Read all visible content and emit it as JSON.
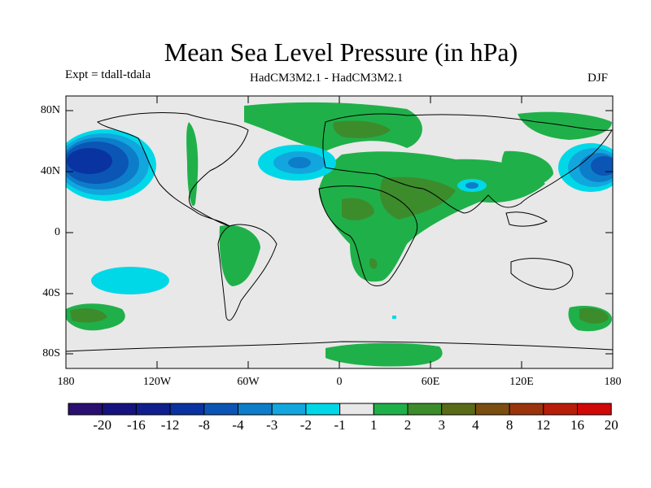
{
  "title": "Mean Sea Level Pressure (in hPa)",
  "expt_label": "Expt = tdall-tdala",
  "model_label": "HadCM3M2.1 - HadCM3M2.1",
  "season": "DJF",
  "y_axis": {
    "labels": [
      "80N",
      "40N",
      "0",
      "40S",
      "80S"
    ]
  },
  "x_axis": {
    "labels": [
      "180",
      "120W",
      "60W",
      "0",
      "60E",
      "120E",
      "180"
    ]
  },
  "colorbar": {
    "labels": [
      "-20",
      "-16",
      "-12",
      "-8",
      "-4",
      "-3",
      "-2",
      "-1",
      "1",
      "2",
      "3",
      "4",
      "8",
      "12",
      "16",
      "20"
    ],
    "colors": [
      "#2a0f70",
      "#17137e",
      "#101f8e",
      "#0a33a2",
      "#0b55b5",
      "#0d7dc9",
      "#12a6de",
      "#00d8e8",
      "#e8e8e8",
      "#20b04a",
      "#3c8c2c",
      "#5a6b18",
      "#7a4d10",
      "#9b340c",
      "#b81d0a",
      "#d00808"
    ]
  },
  "map_colors": {
    "background": "#e8e8e8",
    "land_outline": "#000000"
  }
}
